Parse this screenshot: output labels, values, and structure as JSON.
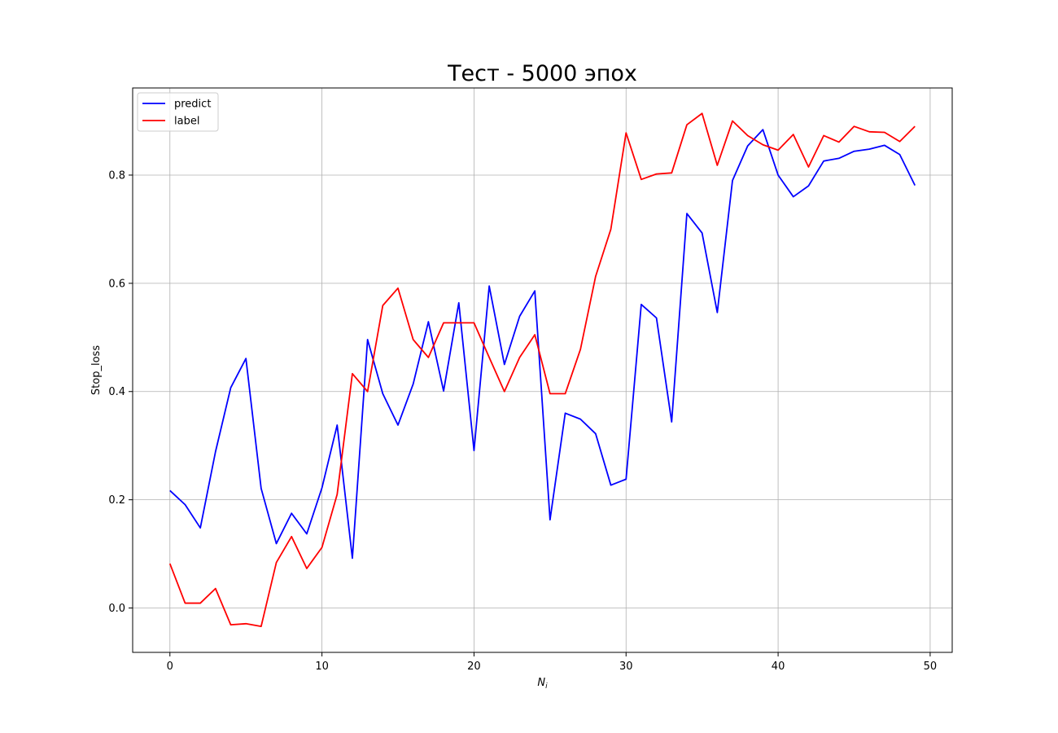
{
  "chart_data": {
    "type": "line",
    "title": "Тест - 5000 эпох",
    "xlabel": "N",
    "xlabel_subscript": "i",
    "ylabel": "Stop_loss",
    "xlim": [
      -2.45,
      51.45
    ],
    "ylim": [
      -0.082,
      0.961
    ],
    "xticks": [
      0,
      10,
      20,
      30,
      40,
      50
    ],
    "xtick_labels": [
      "0",
      "10",
      "20",
      "30",
      "40",
      "50"
    ],
    "yticks": [
      0.0,
      0.2,
      0.4,
      0.6,
      0.8
    ],
    "ytick_labels": [
      "0.0",
      "0.2",
      "0.4",
      "0.6",
      "0.8"
    ],
    "grid": true,
    "legend_position": "top-left",
    "x": [
      0,
      1,
      2,
      3,
      4,
      5,
      6,
      7,
      8,
      9,
      10,
      11,
      12,
      13,
      14,
      15,
      16,
      17,
      18,
      19,
      20,
      21,
      22,
      23,
      24,
      25,
      26,
      27,
      28,
      29,
      30,
      31,
      32,
      33,
      34,
      35,
      36,
      37,
      38,
      39,
      40,
      41,
      42,
      43,
      44,
      45,
      46,
      47,
      48,
      49
    ],
    "series": [
      {
        "name": "predict",
        "color": "#0000ff",
        "values": [
          0.217,
          0.191,
          0.148,
          0.289,
          0.407,
          0.461,
          0.221,
          0.119,
          0.175,
          0.137,
          0.222,
          0.338,
          0.092,
          0.496,
          0.396,
          0.338,
          0.414,
          0.529,
          0.401,
          0.564,
          0.291,
          0.595,
          0.45,
          0.539,
          0.586,
          0.163,
          0.36,
          0.349,
          0.322,
          0.227,
          0.238,
          0.561,
          0.536,
          0.344,
          0.729,
          0.693,
          0.546,
          0.79,
          0.854,
          0.884,
          0.8,
          0.76,
          0.78,
          0.826,
          0.831,
          0.844,
          0.848,
          0.855,
          0.838,
          0.781
        ]
      },
      {
        "name": "label",
        "color": "#ff0000",
        "values": [
          0.082,
          0.009,
          0.009,
          0.036,
          -0.031,
          -0.029,
          -0.034,
          0.084,
          0.132,
          0.073,
          0.112,
          0.21,
          0.433,
          0.4,
          0.559,
          0.591,
          0.496,
          0.463,
          0.527,
          0.527,
          0.527,
          0.463,
          0.4,
          0.463,
          0.505,
          0.396,
          0.396,
          0.478,
          0.613,
          0.7,
          0.878,
          0.792,
          0.802,
          0.804,
          0.893,
          0.914,
          0.818,
          0.9,
          0.873,
          0.856,
          0.846,
          0.875,
          0.815,
          0.873,
          0.861,
          0.89,
          0.88,
          0.879,
          0.862,
          0.89
        ]
      }
    ]
  }
}
